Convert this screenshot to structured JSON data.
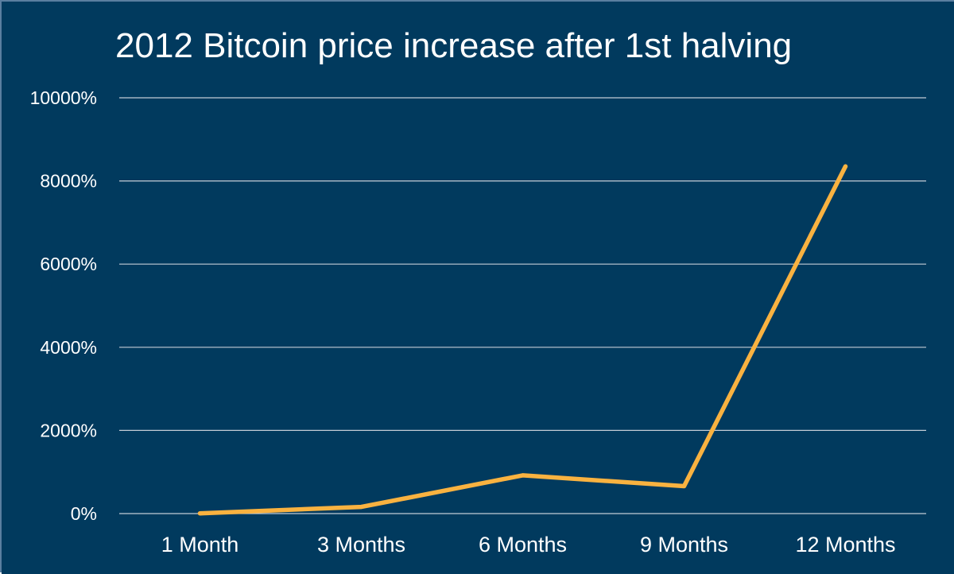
{
  "chart_data": {
    "type": "line",
    "title": "2012 Bitcoin price increase after 1st halving",
    "xlabel": "",
    "ylabel": "",
    "categories": [
      "1 Month",
      "3 Months",
      "6 Months",
      "9 Months",
      "12 Months"
    ],
    "series": [
      {
        "values": [
          5,
          160,
          920,
          660,
          8350
        ],
        "color": "#f9b240"
      }
    ],
    "yticks": [
      0,
      2000,
      4000,
      6000,
      8000,
      10000
    ],
    "ytick_labels": [
      "0%",
      "2000%",
      "4000%",
      "6000%",
      "8000%",
      "10000%"
    ],
    "ylim": [
      0,
      10000
    ],
    "grid": true,
    "legend": "none"
  },
  "colors": {
    "background": "#013a5e",
    "grid": "#c3ccd6",
    "text": "#ffffff",
    "line": "#f9b240"
  }
}
